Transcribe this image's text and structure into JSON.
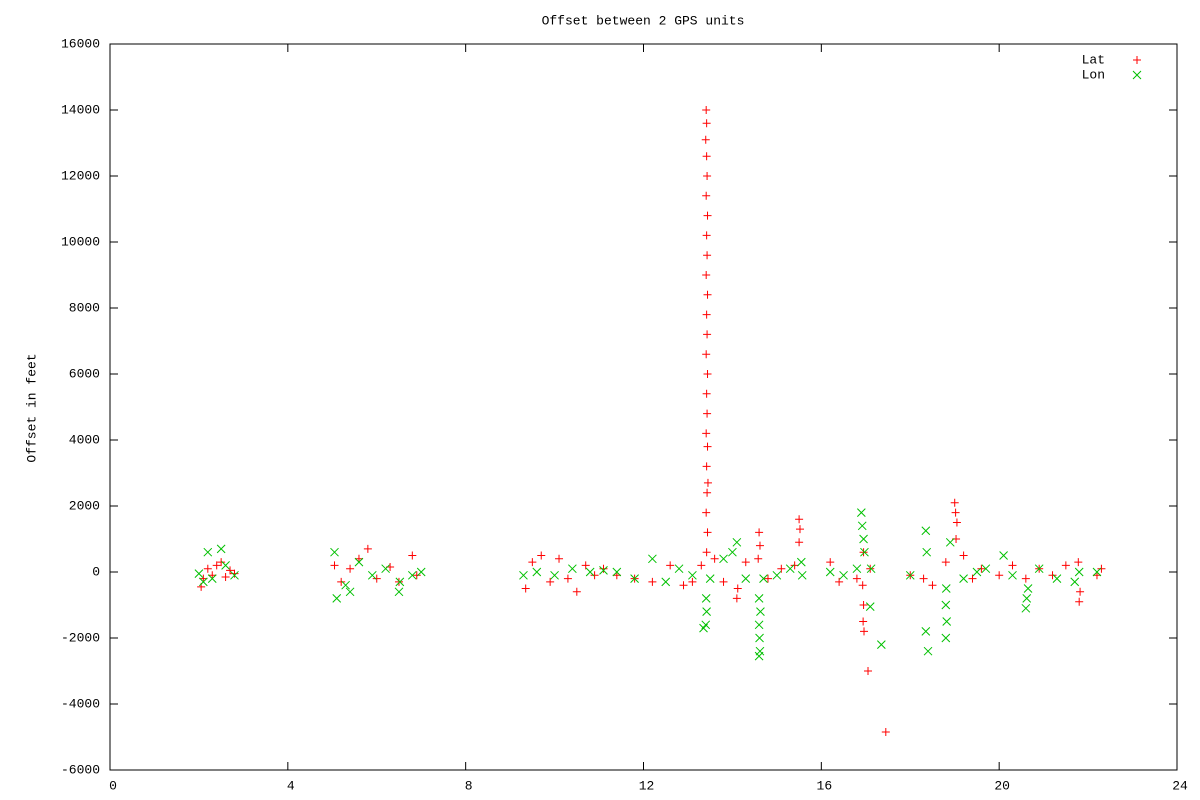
{
  "chart_data": {
    "type": "scatter",
    "title": "Offset between 2 GPS units",
    "y_label": "Offset in feet",
    "xlim": [
      0,
      24
    ],
    "xticks": [
      0,
      4,
      8,
      12,
      16,
      20,
      24
    ],
    "ylim": [
      -6000,
      16000
    ],
    "yticks": [
      -6000,
      -4000,
      -2000,
      0,
      2000,
      4000,
      6000,
      8000,
      10000,
      12000,
      14000,
      16000
    ],
    "grid": false,
    "legend": "top-right",
    "series": [
      {
        "name": "Lat",
        "color": "#ff0000",
        "marker": "plus",
        "x": [
          2.05,
          2.1,
          2.2,
          2.3,
          2.4,
          2.5,
          2.6,
          2.7,
          2.8,
          5.05,
          5.2,
          5.4,
          5.6,
          5.8,
          6.0,
          6.3,
          6.5,
          6.8,
          6.9,
          9.35,
          9.5,
          9.7,
          9.9,
          10.1,
          10.3,
          10.5,
          10.7,
          10.9,
          11.1,
          11.4,
          11.8,
          12.2,
          12.6,
          12.9,
          13.1,
          13.3,
          13.42,
          13.44,
          13.41,
          13.43,
          13.45,
          13.42,
          13.44,
          13.41,
          13.43,
          13.42,
          13.44,
          13.41,
          13.43,
          13.42,
          13.44,
          13.41,
          13.43,
          13.42,
          13.44,
          13.41,
          13.43,
          13.42,
          13.4,
          13.42,
          13.41,
          13.6,
          13.8,
          14.1,
          14.12,
          14.3,
          14.6,
          14.62,
          14.58,
          14.8,
          15.1,
          15.4,
          15.5,
          15.52,
          15.5,
          16.2,
          16.4,
          16.8,
          16.95,
          16.93,
          16.95,
          16.94,
          16.96,
          17.05,
          17.45,
          17.1,
          18.0,
          18.3,
          18.5,
          18.8,
          19.0,
          19.02,
          19.05,
          19.03,
          19.2,
          19.4,
          19.6,
          20.0,
          20.3,
          20.6,
          20.9,
          21.2,
          21.5,
          21.8,
          21.82,
          21.78,
          22.2,
          22.3
        ],
        "values": [
          -450,
          -200,
          100,
          -100,
          200,
          300,
          -150,
          50,
          -50,
          200,
          -300,
          100,
          400,
          700,
          -200,
          150,
          -300,
          500,
          -100,
          -500,
          300,
          500,
          -300,
          400,
          -200,
          -600,
          200,
          -100,
          100,
          -100,
          -200,
          -300,
          200,
          -400,
          -300,
          200,
          600,
          1200,
          1800,
          2400,
          2700,
          3200,
          3800,
          4200,
          4800,
          5400,
          6000,
          6600,
          7200,
          7800,
          8400,
          9000,
          9600,
          10200,
          10800,
          11400,
          12000,
          12600,
          13100,
          13600,
          14000,
          400,
          -300,
          -800,
          -500,
          300,
          1200,
          800,
          400,
          -200,
          100,
          200,
          1600,
          1300,
          900,
          300,
          -300,
          -200,
          600,
          -400,
          -1000,
          -1500,
          -1800,
          -3000,
          -4850,
          100,
          -100,
          -200,
          -400,
          300,
          2100,
          1800,
          1500,
          1000,
          500,
          -200,
          100,
          -100,
          200,
          -200,
          100,
          -100,
          200,
          -900,
          -600,
          300,
          -100,
          100
        ]
      },
      {
        "name": "Lon",
        "color": "#00c000",
        "marker": "cross",
        "x": [
          2.1,
          2.2,
          2.3,
          2.5,
          2.6,
          2.8,
          2.0,
          5.05,
          5.1,
          5.3,
          5.4,
          5.6,
          5.9,
          6.2,
          6.5,
          6.52,
          6.8,
          7.0,
          9.3,
          9.6,
          10.0,
          10.4,
          10.8,
          11.1,
          11.4,
          11.8,
          12.2,
          12.5,
          12.8,
          13.1,
          13.35,
          13.4,
          13.42,
          13.41,
          13.5,
          13.8,
          14.1,
          14.0,
          14.3,
          14.6,
          14.62,
          14.61,
          14.6,
          14.63,
          14.6,
          14.7,
          15.0,
          15.3,
          15.55,
          15.57,
          16.2,
          16.5,
          16.8,
          16.9,
          16.92,
          16.95,
          16.97,
          17.1,
          17.12,
          17.35,
          18.0,
          18.35,
          18.37,
          18.35,
          18.4,
          18.8,
          18.82,
          18.8,
          18.81,
          18.9,
          19.2,
          19.5,
          19.7,
          20.1,
          20.3,
          20.6,
          20.62,
          20.65,
          20.9,
          21.3,
          21.7,
          21.8,
          22.2
        ],
        "values": [
          -300,
          600,
          -200,
          700,
          200,
          -100,
          -50,
          600,
          -800,
          -400,
          -600,
          300,
          -100,
          100,
          -600,
          -300,
          -100,
          0,
          -100,
          0,
          -100,
          100,
          0,
          50,
          0,
          -200,
          400,
          -300,
          100,
          -100,
          -1700,
          -1600,
          -1200,
          -800,
          -200,
          400,
          900,
          600,
          -200,
          -2550,
          -2400,
          -2000,
          -1600,
          -1200,
          -800,
          -200,
          -100,
          100,
          300,
          -100,
          0,
          -100,
          100,
          1800,
          1400,
          1000,
          600,
          -1050,
          100,
          -2200,
          -100,
          1250,
          600,
          -1800,
          -2400,
          -2000,
          -1500,
          -1000,
          -500,
          900,
          -200,
          0,
          100,
          500,
          -100,
          -1100,
          -800,
          -500,
          100,
          -200,
          -300,
          0,
          0
        ]
      }
    ]
  }
}
